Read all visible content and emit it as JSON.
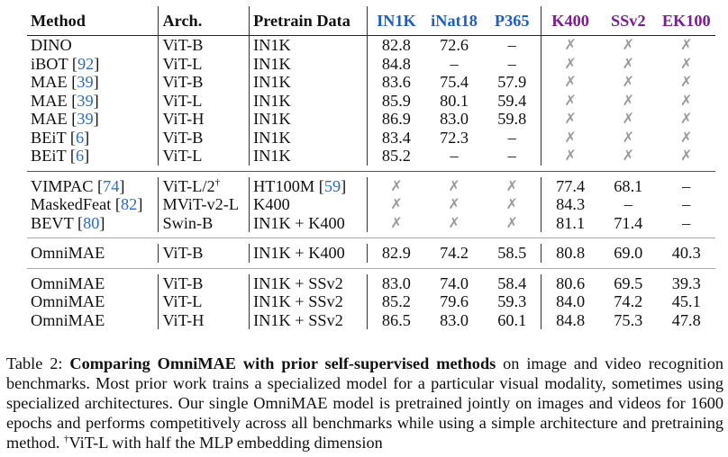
{
  "table": {
    "headers": {
      "method": "Method",
      "arch": "Arch.",
      "pretrain": "Pretrain Data",
      "image": [
        "IN1K",
        "iNat18",
        "P365"
      ],
      "video": [
        "K400",
        "SSv2",
        "EK100"
      ]
    },
    "groups": [
      [
        {
          "method": "DINO",
          "cite": "",
          "arch": "ViT-B",
          "arch_sup": "",
          "pretrain": "IN1K",
          "pretrain_cite": "",
          "pretrain_suffix": "",
          "scores": [
            "82.8",
            "72.6",
            "–",
            "✗",
            "✗",
            "✗"
          ]
        },
        {
          "method": "iBOT",
          "cite": "92",
          "arch": "ViT-L",
          "arch_sup": "",
          "pretrain": "IN1K",
          "pretrain_cite": "",
          "pretrain_suffix": "",
          "scores": [
            "84.8",
            "–",
            "–",
            "✗",
            "✗",
            "✗"
          ]
        },
        {
          "method": "MAE",
          "cite": "39",
          "arch": "ViT-B",
          "arch_sup": "",
          "pretrain": "IN1K",
          "pretrain_cite": "",
          "pretrain_suffix": "",
          "scores": [
            "83.6",
            "75.4",
            "57.9",
            "✗",
            "✗",
            "✗"
          ]
        },
        {
          "method": "MAE",
          "cite": "39",
          "arch": "ViT-L",
          "arch_sup": "",
          "pretrain": "IN1K",
          "pretrain_cite": "",
          "pretrain_suffix": "",
          "scores": [
            "85.9",
            "80.1",
            "59.4",
            "✗",
            "✗",
            "✗"
          ]
        },
        {
          "method": "MAE",
          "cite": "39",
          "arch": "ViT-H",
          "arch_sup": "",
          "pretrain": "IN1K",
          "pretrain_cite": "",
          "pretrain_suffix": "",
          "scores": [
            "86.9",
            "83.0",
            "59.8",
            "✗",
            "✗",
            "✗"
          ]
        },
        {
          "method": "BEiT",
          "cite": "6",
          "arch": "ViT-B",
          "arch_sup": "",
          "pretrain": "IN1K",
          "pretrain_cite": "",
          "pretrain_suffix": "",
          "scores": [
            "83.4",
            "72.3",
            "–",
            "✗",
            "✗",
            "✗"
          ]
        },
        {
          "method": "BEiT",
          "cite": "6",
          "arch": "ViT-L",
          "arch_sup": "",
          "pretrain": "IN1K",
          "pretrain_cite": "",
          "pretrain_suffix": "",
          "scores": [
            "85.2",
            "–",
            "–",
            "✗",
            "✗",
            "✗"
          ]
        }
      ],
      [
        {
          "method": "VIMPAC",
          "cite": "74",
          "arch": "ViT-L/2",
          "arch_sup": "†",
          "pretrain": "HT100M",
          "pretrain_cite": "59",
          "pretrain_suffix": "",
          "scores": [
            "✗",
            "✗",
            "✗",
            "77.4",
            "68.1",
            "–"
          ]
        },
        {
          "method": "MaskedFeat",
          "cite": "82",
          "arch": "MViT-v2-L",
          "arch_sup": "",
          "pretrain": "K400",
          "pretrain_cite": "",
          "pretrain_suffix": "",
          "scores": [
            "✗",
            "✗",
            "✗",
            "84.3",
            "–",
            "–"
          ]
        },
        {
          "method": "BEVT",
          "cite": "80",
          "arch": "Swin-B",
          "arch_sup": "",
          "pretrain": "IN1K + K400",
          "pretrain_cite": "",
          "pretrain_suffix": "",
          "scores": [
            "✗",
            "✗",
            "✗",
            "81.1",
            "71.4",
            "–"
          ]
        }
      ],
      [
        {
          "method": "OmniMAE",
          "cite": "",
          "arch": "ViT-B",
          "arch_sup": "",
          "pretrain": "IN1K + K400",
          "pretrain_cite": "",
          "pretrain_suffix": "",
          "scores": [
            "82.9",
            "74.2",
            "58.5",
            "80.8",
            "69.0",
            "40.3"
          ]
        }
      ],
      [
        {
          "method": "OmniMAE",
          "cite": "",
          "arch": "ViT-B",
          "arch_sup": "",
          "pretrain": "IN1K + SSv2",
          "pretrain_cite": "",
          "pretrain_suffix": "",
          "scores": [
            "83.0",
            "74.0",
            "58.4",
            "80.6",
            "69.5",
            "39.3"
          ]
        },
        {
          "method": "OmniMAE",
          "cite": "",
          "arch": "ViT-L",
          "arch_sup": "",
          "pretrain": "IN1K + SSv2",
          "pretrain_cite": "",
          "pretrain_suffix": "",
          "scores": [
            "85.2",
            "79.6",
            "59.3",
            "84.0",
            "74.2",
            "45.1"
          ]
        },
        {
          "method": "OmniMAE",
          "cite": "",
          "arch": "ViT-H",
          "arch_sup": "",
          "pretrain": "IN1K + SSv2",
          "pretrain_cite": "",
          "pretrain_suffix": "",
          "scores": [
            "86.5",
            "83.0",
            "60.1",
            "84.8",
            "75.3",
            "47.8"
          ]
        }
      ]
    ]
  },
  "caption": {
    "label": "Table 2:",
    "bold": "Comparing OmniMAE with prior self-supervised methods",
    "text": "on image and video recognition benchmarks. Most prior work trains a specialized model for a particular visual modality, sometimes using specialized architectures. Our single OmniMAE model is pretrained jointly on images and videos for 1600 epochs and performs competitively across all benchmarks while using a simple architecture and pretraining method.",
    "footnote_mark": "†",
    "footnote": "ViT-L with half the MLP embedding dimension"
  },
  "colors": {
    "image_header": "#1f5fb8",
    "video_header": "#7b1f8f",
    "citation": "#2b6cc0",
    "cross": "#9a9a9a"
  }
}
